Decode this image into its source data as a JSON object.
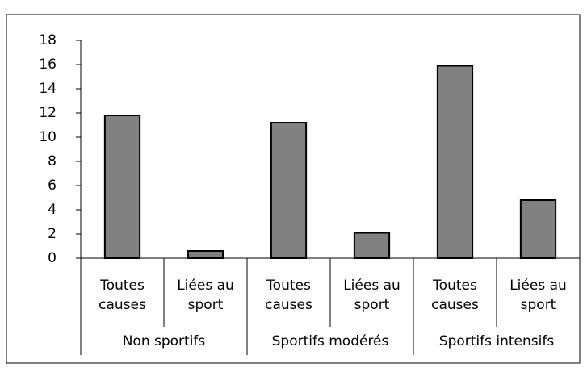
{
  "chart_data": {
    "type": "bar",
    "categories": [
      "Toutes causes",
      "Liées au sport",
      "Toutes causes",
      "Liées au sport",
      "Toutes causes",
      "Liées au sport"
    ],
    "groups": [
      "Non sportifs",
      "Sportifs modérés",
      "Sportifs intensifs"
    ],
    "values": [
      11.8,
      0.6,
      11.2,
      2.1,
      15.9,
      4.8
    ],
    "color": "#808080",
    "ylim": [
      0,
      18
    ],
    "yticks": [
      0,
      2,
      4,
      6,
      8,
      10,
      12,
      14,
      16,
      18
    ],
    "grid": false
  }
}
